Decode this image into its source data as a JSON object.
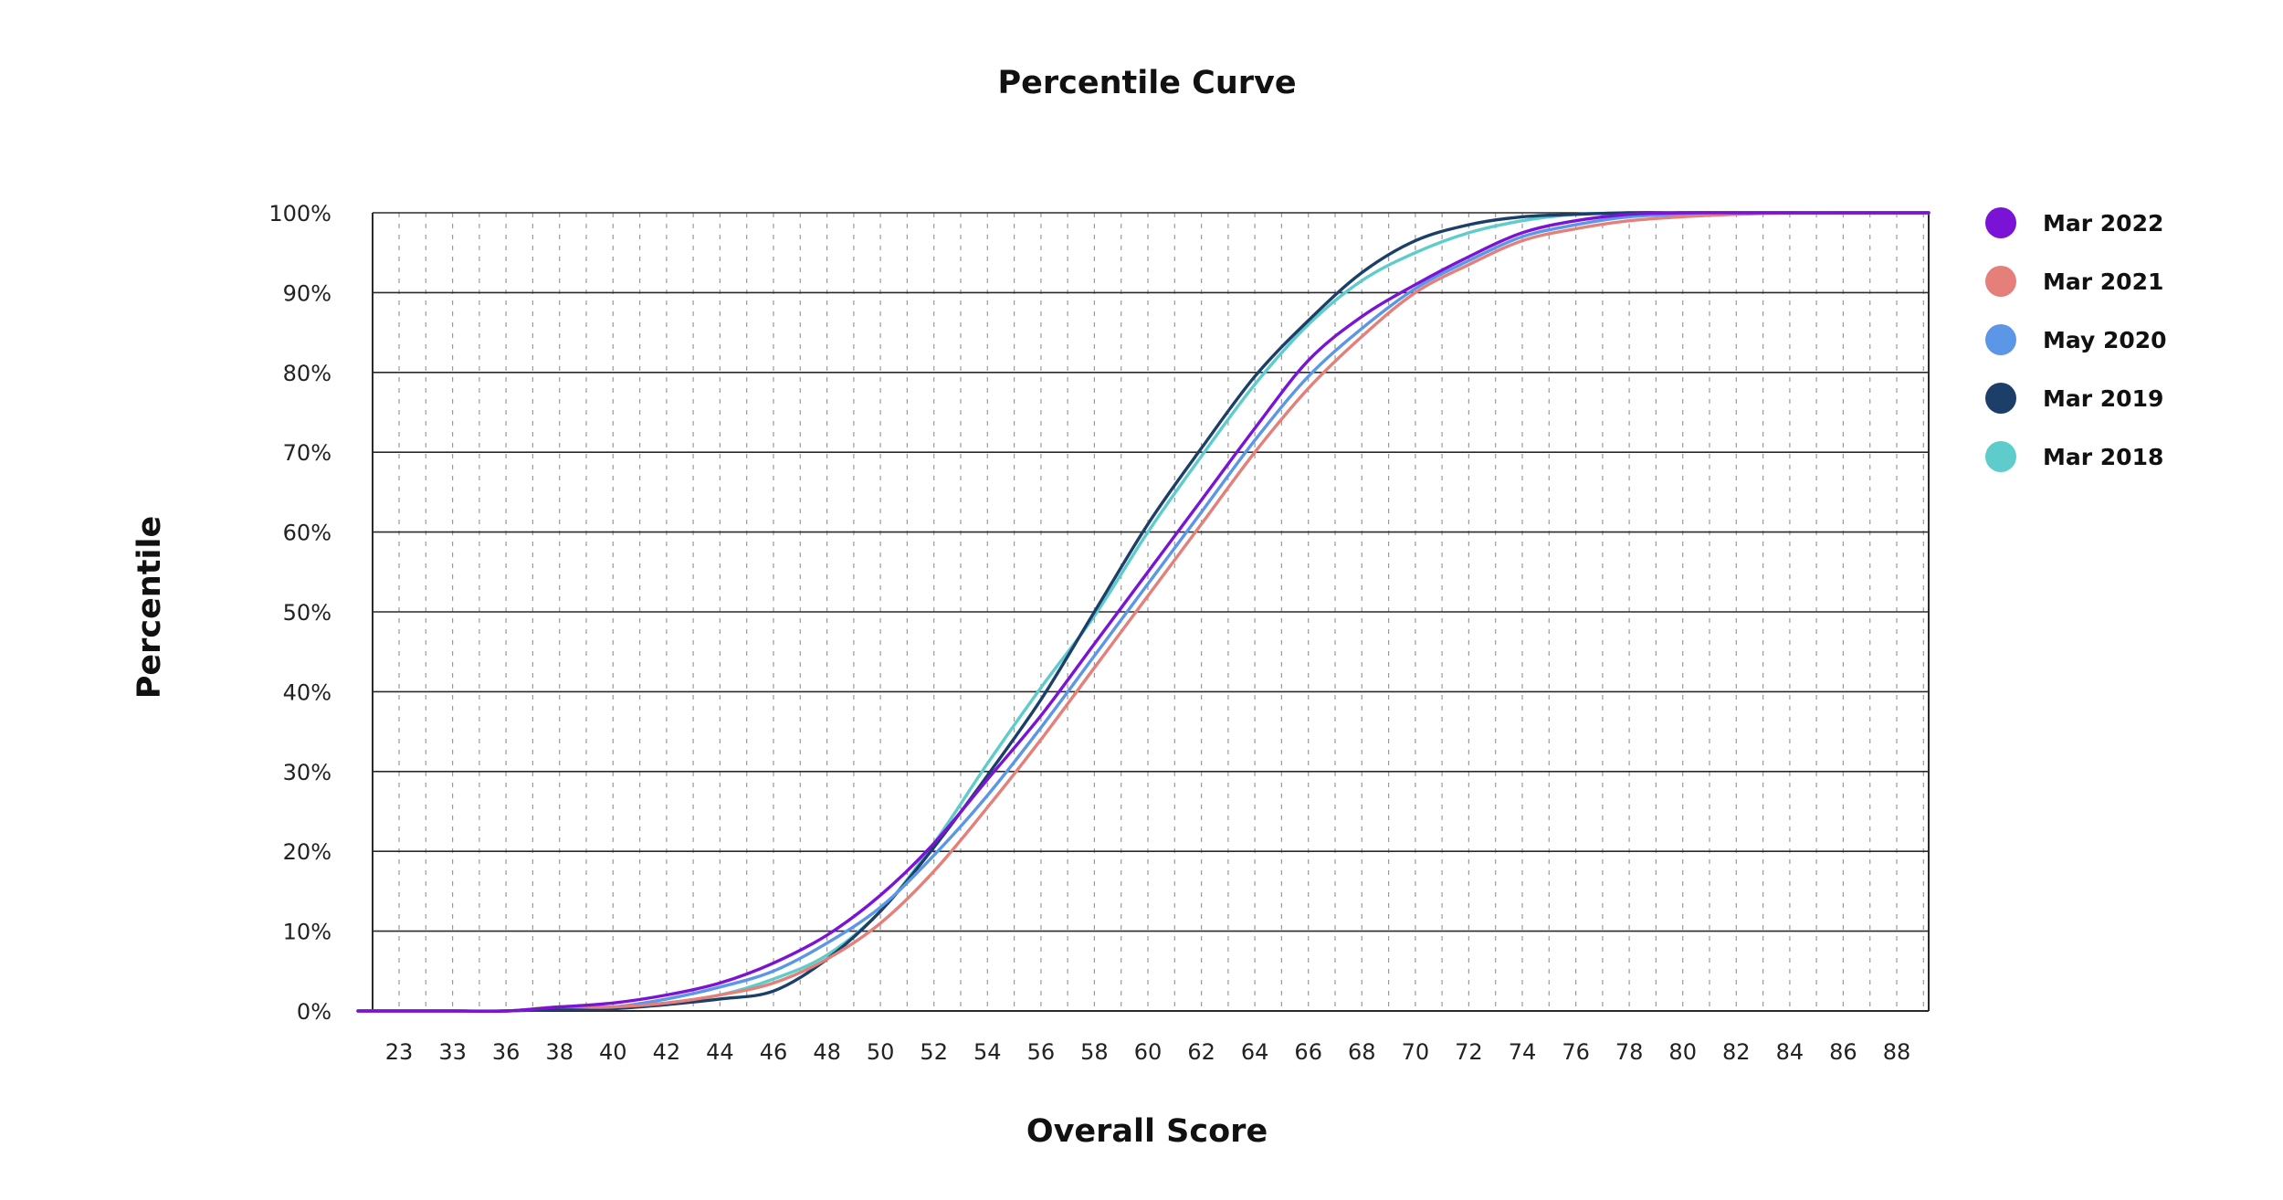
{
  "chart_data": {
    "type": "line",
    "title": "Percentile Curve",
    "xlabel": "Overall Score",
    "ylabel": "Percentile",
    "x_tick_labels": [
      "23",
      "33",
      "36",
      "38",
      "40",
      "42",
      "44",
      "46",
      "48",
      "50",
      "52",
      "54",
      "56",
      "58",
      "60",
      "62",
      "64",
      "66",
      "68",
      "70",
      "72",
      "74",
      "76",
      "78",
      "80",
      "82",
      "84",
      "86",
      "88"
    ],
    "y_tick_labels": [
      "0%",
      "10%",
      "20%",
      "30%",
      "40%",
      "50%",
      "60%",
      "70%",
      "80%",
      "90%",
      "100%"
    ],
    "ylim": [
      0,
      100
    ],
    "grid": true,
    "legend_position": "right",
    "x": [
      23,
      33,
      36,
      38,
      40,
      42,
      44,
      46,
      48,
      50,
      52,
      54,
      56,
      58,
      60,
      62,
      64,
      66,
      68,
      70,
      72,
      74,
      76,
      78,
      80,
      82,
      84,
      86,
      88
    ],
    "series": [
      {
        "name": "Mar 2022",
        "color": "#7b13d6",
        "values": [
          0,
          0,
          0,
          0.5,
          1,
          2,
          3.5,
          6,
          9.5,
          14.5,
          21,
          29,
          37,
          46,
          55,
          64,
          73,
          81.5,
          87,
          91,
          94.5,
          97.5,
          99,
          99.8,
          100,
          100,
          100,
          100,
          100
        ]
      },
      {
        "name": "Mar 2021",
        "color": "#e48079",
        "values": [
          0,
          0,
          0,
          0.5,
          0.5,
          1,
          2,
          3.5,
          6.5,
          11,
          17.5,
          25.5,
          34,
          43,
          52,
          61,
          70,
          78,
          84.5,
          90,
          93.5,
          96.5,
          98,
          99,
          99.5,
          99.8,
          100,
          100,
          100
        ]
      },
      {
        "name": "May 2020",
        "color": "#5b97e6",
        "values": [
          0,
          0,
          0,
          0.5,
          0.5,
          1.5,
          3,
          5,
          8.5,
          13,
          19.5,
          27,
          35.5,
          44.5,
          53.5,
          62.5,
          71.5,
          79.5,
          85.5,
          90.5,
          94,
          97,
          98.5,
          99.5,
          99.8,
          100,
          100,
          100,
          100
        ]
      },
      {
        "name": "Mar 2019",
        "color": "#1c3f69",
        "values": [
          0,
          0,
          0,
          0.2,
          0.3,
          0.8,
          1.5,
          2.5,
          6.5,
          12.5,
          20.5,
          29.5,
          39,
          50,
          61,
          70.5,
          79.5,
          86.5,
          92.5,
          96.5,
          98.5,
          99.5,
          99.8,
          100,
          100,
          100,
          100,
          100,
          100
        ]
      },
      {
        "name": "Mar 2018",
        "color": "#5fcccc",
        "values": [
          0,
          0,
          0,
          0.5,
          0.5,
          1,
          2,
          4,
          7,
          12.5,
          21,
          31,
          40.5,
          49.5,
          60,
          69.5,
          78.5,
          86,
          91.5,
          95,
          97.5,
          99,
          99.8,
          100,
          100,
          100,
          100,
          100,
          100
        ]
      }
    ]
  }
}
